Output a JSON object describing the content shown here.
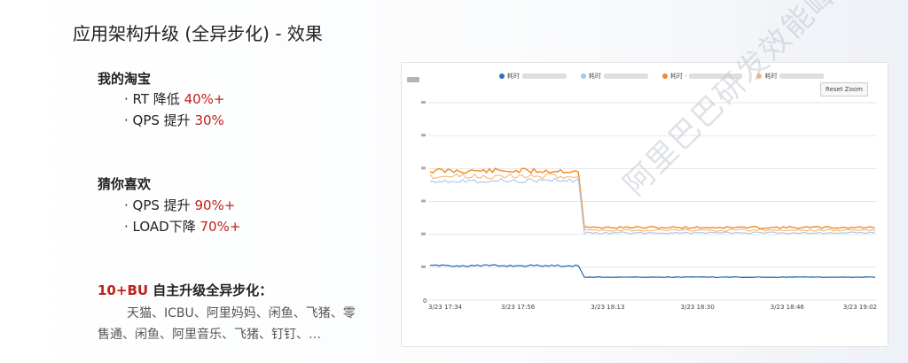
{
  "slide": {
    "title": "应用架构升级 (全异步化) - 效果",
    "sections": [
      {
        "heading": "我的淘宝",
        "bullets": [
          {
            "prefix": "· RT 降低 ",
            "highlight": "40%+"
          },
          {
            "prefix": "· QPS 提升 ",
            "highlight": "30%"
          }
        ]
      },
      {
        "heading": "猜你喜欢",
        "bullets": [
          {
            "prefix": "· QPS 提升 ",
            "highlight": "90%+"
          },
          {
            "prefix": "· LOAD下降 ",
            "highlight": "70%+"
          }
        ]
      }
    ],
    "bu": {
      "highlight": "10+BU",
      "text": " 自主升级全异步化：",
      "line1": "天猫、ICBU、阿里妈妈、闲鱼、飞猪、零",
      "line2": "售通、闲鱼、阿里音乐、飞猪、钉钉、…"
    },
    "watermark": "阿里巴巴研发效能峰会"
  },
  "chart_data": {
    "type": "line",
    "legend": [
      {
        "name": "耗时",
        "color": "#2f6fb6"
      },
      {
        "name": "耗时",
        "color": "#a9c5e6"
      },
      {
        "name": "耗时 ·",
        "color": "#f08a24"
      },
      {
        "name": "耗时",
        "color": "#f5b77a"
      }
    ],
    "reset_label": "Reset Zoom",
    "x_ticks": [
      "3/23 17:34",
      "3/23 17:56",
      "3/23 18:13",
      "3/23 18:30",
      "3/23 18:46",
      "3/23 19:02"
    ],
    "y_zero_label": "0",
    "grid": true,
    "colors": {
      "dark_orange": "#f08a24",
      "light_orange": "#f5b77a",
      "light_blue": "#a9c5e6",
      "dark_blue": "#2f6fb6"
    }
  }
}
